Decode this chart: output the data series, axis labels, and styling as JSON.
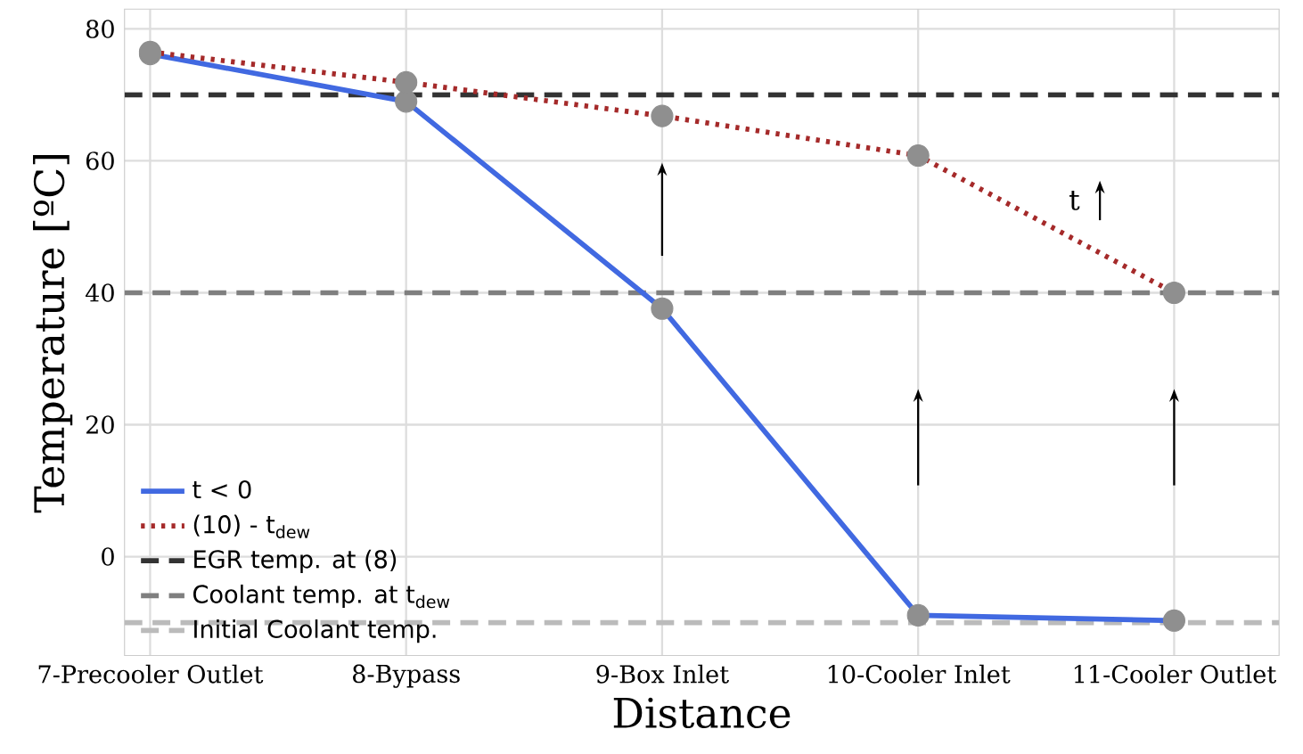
{
  "chart_data": {
    "type": "line",
    "categories": [
      "7-Precooler Outlet",
      "8-Bypass",
      "9-Box Inlet",
      "10-Cooler Inlet",
      "11-Cooler Outlet"
    ],
    "series": [
      {
        "name": "t < 0",
        "color": "#4169e1",
        "line_style": "solid",
        "values": [
          76.2,
          69,
          37.6,
          -8.9,
          -9.7
        ]
      },
      {
        "name": "(10) - t$_{dew}$",
        "color": "#a52a2a",
        "line_style": "dotted",
        "values": [
          76.5,
          71.9,
          66.8,
          60.8,
          40
        ]
      }
    ],
    "ref_lines": [
      {
        "axis": "y",
        "value": 70,
        "label": "EGR temp. at (8)",
        "color": "#333333",
        "line_style": "dashed"
      },
      {
        "axis": "y",
        "value": 40,
        "label": "Coolant temp. at t$_{dew}$",
        "color": "#7f7f7f",
        "line_style": "dashed"
      },
      {
        "axis": "y",
        "value": -10,
        "label": "Initial Coolant temp.",
        "color": "#bbbbbb",
        "line_style": "dashed"
      }
    ],
    "annotations": [
      "t"
    ],
    "xlabel": "Distance",
    "ylabel": "Temperature [ºC]",
    "ylim": [
      -15,
      83
    ],
    "yticks": [
      0,
      20,
      40,
      60,
      80
    ],
    "grid": true,
    "legend": "bottom left",
    "marker": "circle"
  }
}
